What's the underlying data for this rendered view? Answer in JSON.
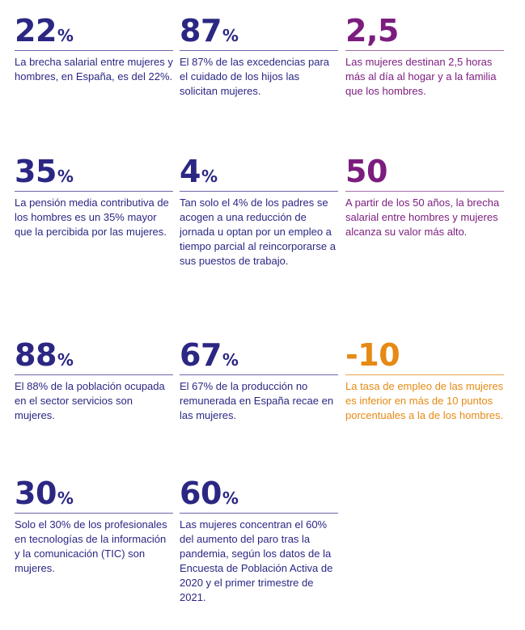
{
  "stats": [
    {
      "value": "22",
      "unit": "%",
      "text": "La brecha salarial entre mujeres y hombres, en España, es del 22%.",
      "color": "#2b2783"
    },
    {
      "value": "87",
      "unit": "%",
      "text": "El 87% de las excedencias para el cuidado de los hijos las solicitan mujeres.",
      "color": "#2b2783"
    },
    {
      "value": "2,5",
      "unit": "",
      "text": "Las mujeres destinan 2,5 horas más al día al hogar y a la familia que los hombres.",
      "color": "#7c1c7e"
    },
    {
      "value": "35",
      "unit": "%",
      "text": "La pensión media contributiva de los hombres es un 35% mayor que la percibida por las mujeres.",
      "color": "#2b2783"
    },
    {
      "value": "4",
      "unit": "%",
      "text": "Tan solo el 4% de los padres se acogen a una reducción de jornada u optan por un empleo a tiempo parcial al reincorporarse a sus puestos de trabajo.",
      "color": "#2b2783"
    },
    {
      "value": "50",
      "unit": "",
      "text": "A partir de los 50 años, la brecha salarial entre hombres y mujeres alcanza su valor más alto.",
      "color": "#7c1c7e"
    },
    {
      "value": "88",
      "unit": "%",
      "text": "El 88% de la población ocupada en el sector servicios son mujeres.",
      "color": "#2b2783"
    },
    {
      "value": "67",
      "unit": "%",
      "text": "El 67% de la producción no remunerada en España recae en las mujeres.",
      "color": "#2b2783"
    },
    {
      "value": "-10",
      "unit": "",
      "text": "La tasa de empleo de las mujeres es inferior en más de 10 puntos porcentuales a la de los hombres.",
      "color": "#e68a14"
    },
    {
      "value": "30",
      "unit": "%",
      "text": "Solo el 30% de los profesionales en tecnologías de la información y la comunicación (TIC) son mujeres.",
      "color": "#2b2783"
    },
    {
      "value": "60",
      "unit": "%",
      "text": "Las mujeres concentran el 60% del aumento del paro tras la pandemia, según los datos de la Encuesta de Población Activa de 2020 y el primer trimestre de 2021.",
      "color": "#2b2783"
    }
  ]
}
